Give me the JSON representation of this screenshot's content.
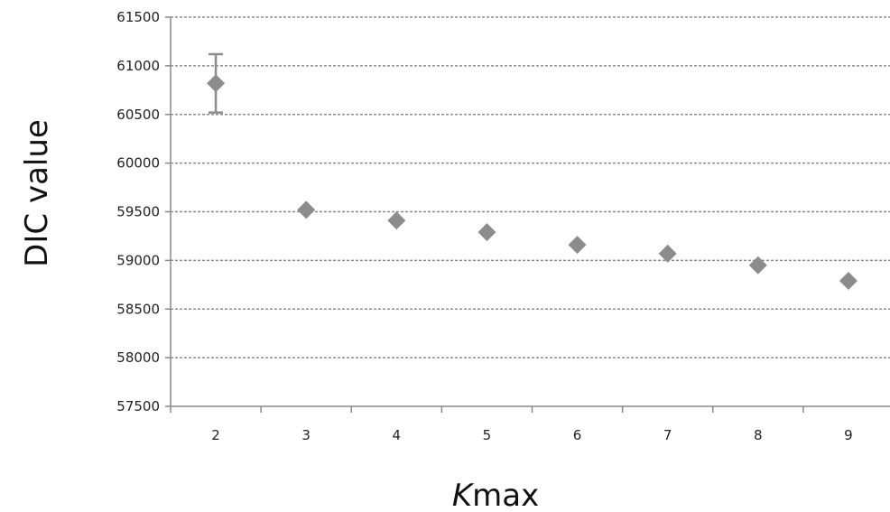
{
  "chart_data": {
    "type": "scatter",
    "title": "",
    "xlabel_italic": "K",
    "xlabel_rest": "max",
    "ylabel": "DIC value",
    "categories": [
      "2",
      "3",
      "4",
      "5",
      "6",
      "7",
      "8",
      "9"
    ],
    "ylim": [
      57500,
      61500
    ],
    "yticks": [
      "57500",
      "58000",
      "58500",
      "59000",
      "59500",
      "60000",
      "60500",
      "61000",
      "61500"
    ],
    "grid": "horizontal-dashed",
    "marker": "diamond",
    "colors": {
      "marker": "#8c8c8c",
      "error_bar": "#8c8c8c",
      "gridline": "#8c8c8c",
      "axis": "#888888"
    },
    "points": [
      {
        "x": "2",
        "y": 60820,
        "err_low": 60520,
        "err_high": 61120
      },
      {
        "x": "3",
        "y": 59520
      },
      {
        "x": "4",
        "y": 59410
      },
      {
        "x": "5",
        "y": 59290
      },
      {
        "x": "6",
        "y": 59160
      },
      {
        "x": "7",
        "y": 59070
      },
      {
        "x": "8",
        "y": 58950
      },
      {
        "x": "9",
        "y": 58790
      }
    ]
  }
}
